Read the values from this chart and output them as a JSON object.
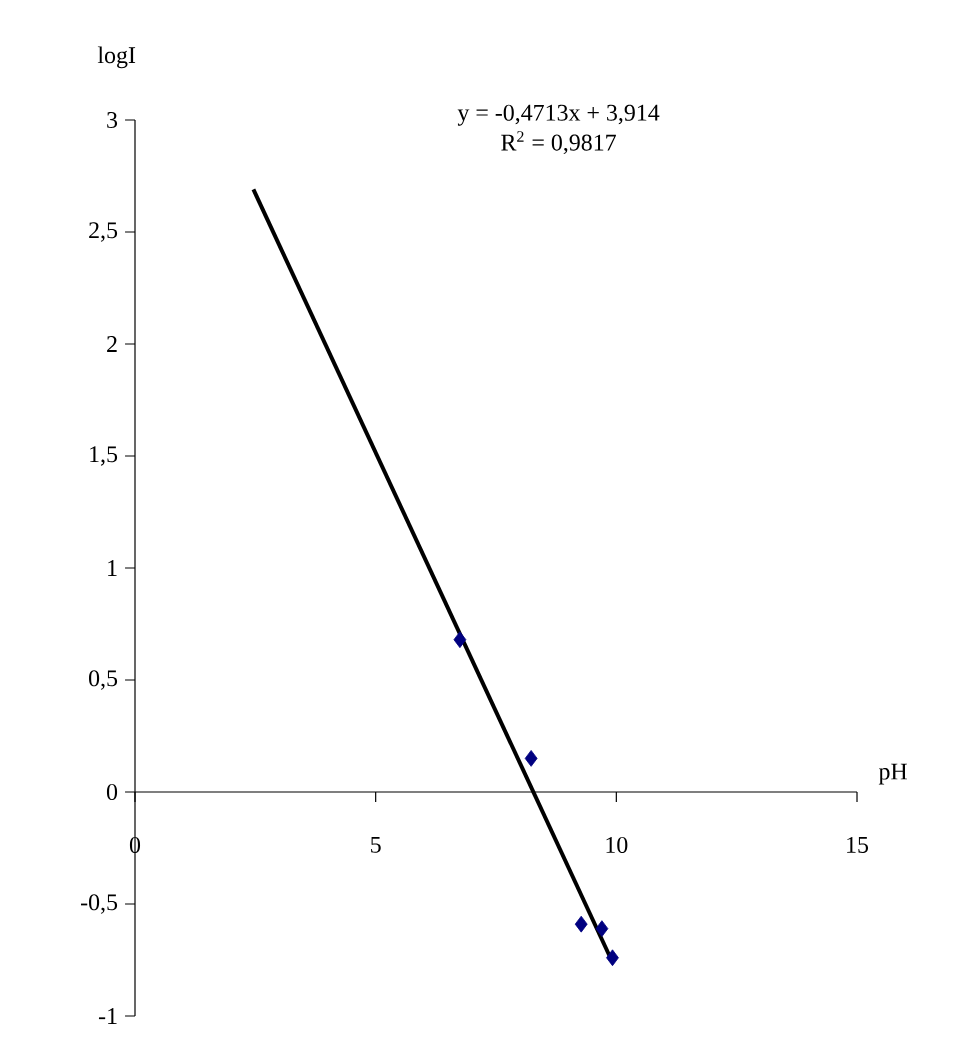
{
  "chart_data": {
    "type": "scatter",
    "xlabel": "pH",
    "ylabel": "logI",
    "annotations": [
      "y = -0,4713x + 3,914",
      "R$^{2}$ = 0,9817"
    ],
    "series": [
      {
        "color": "#000080",
        "marker": "diamond",
        "x": [
          6.75,
          8.23,
          9.27,
          9.7,
          9.92
        ],
        "values": [
          0.68,
          0.15,
          -0.59,
          -0.61,
          -0.74
        ]
      },
      {
        "type": "line",
        "color": "#000000",
        "marker": "none",
        "x": [
          2.46,
          9.92
        ],
        "values": [
          2.69,
          -0.76
        ]
      }
    ],
    "xlim": [
      0,
      15
    ],
    "ylim": [
      -1,
      3
    ],
    "xticks": [
      0,
      5,
      10,
      15
    ],
    "yticks": [
      {
        "value": -1,
        "label": "-1"
      },
      {
        "value": -0.5,
        "label": "-0,5"
      },
      {
        "value": 0,
        "label": "0"
      },
      {
        "value": 0.5,
        "label": "0,5"
      },
      {
        "value": 1,
        "label": "1"
      },
      {
        "value": 1.5,
        "label": "1,5"
      },
      {
        "value": 2,
        "label": "2"
      },
      {
        "value": 2.5,
        "label": "2,5"
      },
      {
        "value": 3,
        "label": "3"
      }
    ],
    "grid": false
  }
}
